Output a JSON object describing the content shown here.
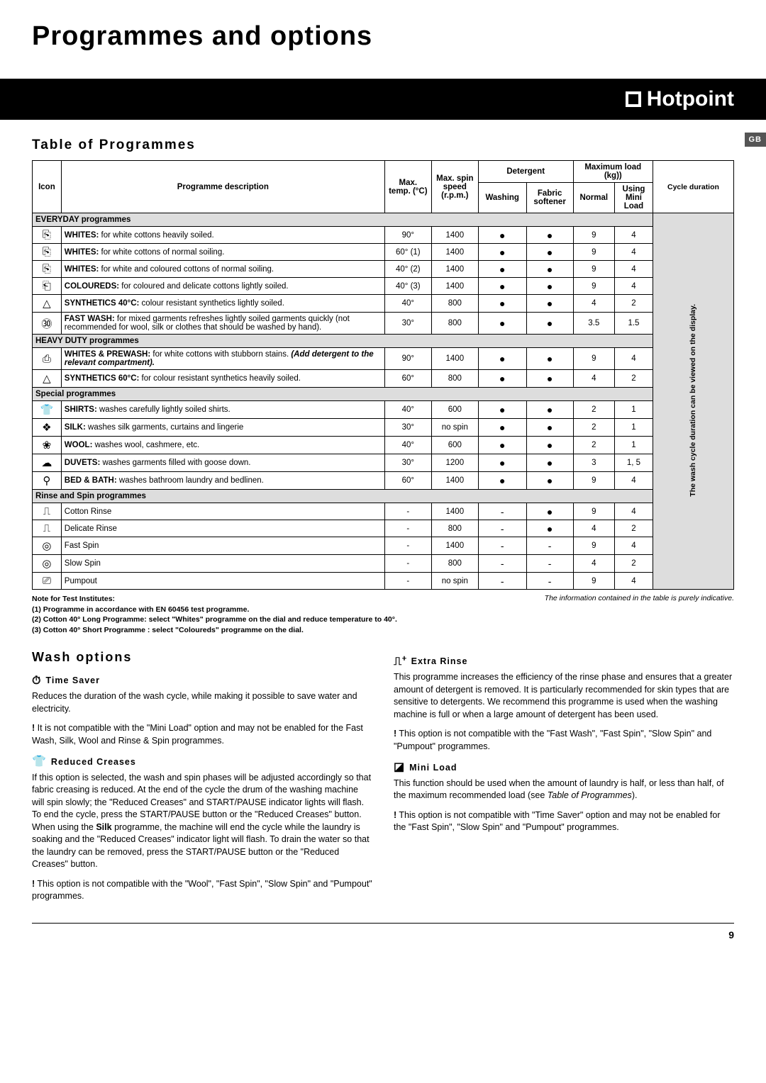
{
  "title": "Programmes and options",
  "brand": "Hotpoint",
  "lang_tab": "GB",
  "table_heading": "Table of Programmes",
  "headers": {
    "icon": "Icon",
    "desc": "Programme description",
    "temp": "Max. temp. (°C)",
    "spin": "Max. spin speed (r.p.m.)",
    "detergent": "Detergent",
    "washing": "Washing",
    "softener": "Fabric softener",
    "maxload": "Maximum load (kg))",
    "normal": "Normal",
    "mini": "Using Mini Load",
    "cycle": "Cycle duration"
  },
  "cycle_note": "The wash cycle duration can be viewed on the display.",
  "subheads": {
    "everyday": "EVERYDAY programmes",
    "heavy": "HEAVY DUTY programmes",
    "special": "Special programmes",
    "rinse": "Rinse and Spin programmes"
  },
  "rows": [
    {
      "icon": "⎘",
      "desc": "<b>WHITES:</b> for white cottons heavily soiled.",
      "temp": "90°",
      "spin": "1400",
      "wash": "●",
      "soft": "●",
      "norm": "9",
      "mini": "4"
    },
    {
      "icon": "⎘",
      "desc": "<b>WHITES:</b> for white cottons of normal soiling.",
      "temp": "60° (1)",
      "spin": "1400",
      "wash": "●",
      "soft": "●",
      "norm": "9",
      "mini": "4"
    },
    {
      "icon": "⎘",
      "desc": "<b>WHITES:</b> for white and coloured cottons of normal soiling.",
      "temp": "40° (2)",
      "spin": "1400",
      "wash": "●",
      "soft": "●",
      "norm": "9",
      "mini": "4"
    },
    {
      "icon": "⎗",
      "desc": "<b>COLOUREDS:</b> for coloured and delicate cottons lightly soiled.",
      "temp": "40° (3)",
      "spin": "1400",
      "wash": "●",
      "soft": "●",
      "norm": "9",
      "mini": "4"
    },
    {
      "icon": "△",
      "desc": "<b>SYNTHETICS 40°C:</b> colour resistant synthetics lightly soiled.",
      "temp": "40°",
      "spin": "800",
      "wash": "●",
      "soft": "●",
      "norm": "4",
      "mini": "2"
    },
    {
      "icon": "㉚",
      "desc": "<b>FAST WASH:</b> for mixed garments refreshes lightly soiled garments quickly (not recommended for wool, silk or clothes that should be washed by hand).",
      "temp": "30°",
      "spin": "800",
      "wash": "●",
      "soft": "●",
      "norm": "3.5",
      "mini": "1.5"
    }
  ],
  "rows_heavy": [
    {
      "icon": "⎙",
      "desc": "<b>WHITES & PREWASH:</b> for white cottons with stubborn stains. <i><b>(Add detergent to the relevant compartment).</b></i>",
      "temp": "90°",
      "spin": "1400",
      "wash": "●",
      "soft": "●",
      "norm": "9",
      "mini": "4"
    },
    {
      "icon": "△",
      "desc": "<b>SYNTHETICS 60°C:</b> for colour resistant synthetics heavily soiled.",
      "temp": "60°",
      "spin": "800",
      "wash": "●",
      "soft": "●",
      "norm": "4",
      "mini": "2"
    }
  ],
  "rows_special": [
    {
      "icon": "👕",
      "desc": "<b>SHIRTS:</b> washes carefully lightly soiled shirts.",
      "temp": "40°",
      "spin": "600",
      "wash": "●",
      "soft": "●",
      "norm": "2",
      "mini": "1"
    },
    {
      "icon": "❖",
      "desc": "<b>SILK:</b> washes silk garments, curtains and lingerie",
      "temp": "30°",
      "spin": "no spin",
      "wash": "●",
      "soft": "●",
      "norm": "2",
      "mini": "1"
    },
    {
      "icon": "❀",
      "desc": "<b>WOOL:</b> washes wool, cashmere, etc.",
      "temp": "40°",
      "spin": "600",
      "wash": "●",
      "soft": "●",
      "norm": "2",
      "mini": "1"
    },
    {
      "icon": "☁",
      "desc": "<b>DUVETS:</b> washes garments filled with goose down.",
      "temp": "30°",
      "spin": "1200",
      "wash": "●",
      "soft": "●",
      "norm": "3",
      "mini": "1, 5"
    },
    {
      "icon": "⚲",
      "desc": "<b>BED & BATH:</b> washes bathroom laundry and bedlinen.",
      "temp": "60°",
      "spin": "1400",
      "wash": "●",
      "soft": "●",
      "norm": "9",
      "mini": "4"
    }
  ],
  "rows_rinse": [
    {
      "icon": "⎍",
      "desc": "Cotton Rinse",
      "temp": "-",
      "spin": "1400",
      "wash": "-",
      "soft": "●",
      "norm": "9",
      "mini": "4"
    },
    {
      "icon": "⎍",
      "desc": "Delicate Rinse",
      "temp": "-",
      "spin": "800",
      "wash": "-",
      "soft": "●",
      "norm": "4",
      "mini": "2"
    },
    {
      "icon": "◎",
      "desc": "Fast Spin",
      "temp": "-",
      "spin": "1400",
      "wash": "-",
      "soft": "-",
      "norm": "9",
      "mini": "4"
    },
    {
      "icon": "◎",
      "desc": "Slow Spin",
      "temp": "-",
      "spin": "800",
      "wash": "-",
      "soft": "-",
      "norm": "4",
      "mini": "2"
    },
    {
      "icon": "⎚",
      "desc": "Pumpout",
      "temp": "-",
      "spin": "no spin",
      "wash": "-",
      "soft": "-",
      "norm": "9",
      "mini": "4"
    }
  ],
  "notes_title": "Note for Test Institutes:",
  "note1": "(1) Programme in accordance with EN 60456 test programme.",
  "note2": "(2) Cotton 40° Long Programme: select \"Whites\" programme on the dial and reduce temperature to 40°.",
  "note3": "(3) Cotton 40° Short Programme : select \"Coloureds\" programme on the dial.",
  "indicative": "The information contained in the table is purely indicative.",
  "wash_options": "Wash options",
  "opt_time": "Time Saver",
  "opt_time_p1": "Reduces the duration of the wash cycle, while making it possible to save water and electricity.",
  "opt_time_p2": "It is not compatible with the \"Mini Load\" option and may not be enabled for the Fast Wash, Silk, Wool and Rinse & Spin programmes.",
  "opt_creases": "Reduced Creases",
  "opt_creases_p": "If this option is selected, the wash and spin phases will be adjusted accordingly so that fabric creasing is reduced. At the end of the cycle the drum of the washing machine will spin slowly; the \"Reduced Creases\" and START/PAUSE indicator lights will flash. To end the cycle, press the START/PAUSE button or the \"Reduced Creases\" button. When using the <b>Silk</b> programme, the machine will end the cycle while the laundry is soaking and the \"Reduced Creases\" indicator light will flash. To drain the water so that the laundry can be removed, press the START/PAUSE button or the \"Reduced Creases\" button.",
  "opt_creases_p2": "This option is not compatible with the \"Wool\", \"Fast Spin\", \"Slow Spin\" and \"Pumpout\" programmes.",
  "opt_extra": "Extra Rinse",
  "opt_extra_p": "This programme increases the efficiency of the rinse phase and ensures that a greater amount of detergent is removed. It is particularly recommended for skin types that are sensitive to detergents. We recommend this programme is used when the washing machine is full or when a large amount of detergent has been used.",
  "opt_extra_p2": "This option is not compatible with the \"Fast Wash\", \"Fast Spin\", \"Slow Spin\" and \"Pumpout\" programmes.",
  "opt_mini": "Mini Load",
  "opt_mini_p": "This function should be used when the amount of laundry is half, or less than half, of the maximum recommended load (see <i>Table of Programmes</i>).",
  "opt_mini_p2": "This option is not compatible with \"Time Saver\" option and may not be enabled for the \"Fast Spin\", \"Slow Spin\" and \"Pumpout\" programmes.",
  "page_number": "9"
}
